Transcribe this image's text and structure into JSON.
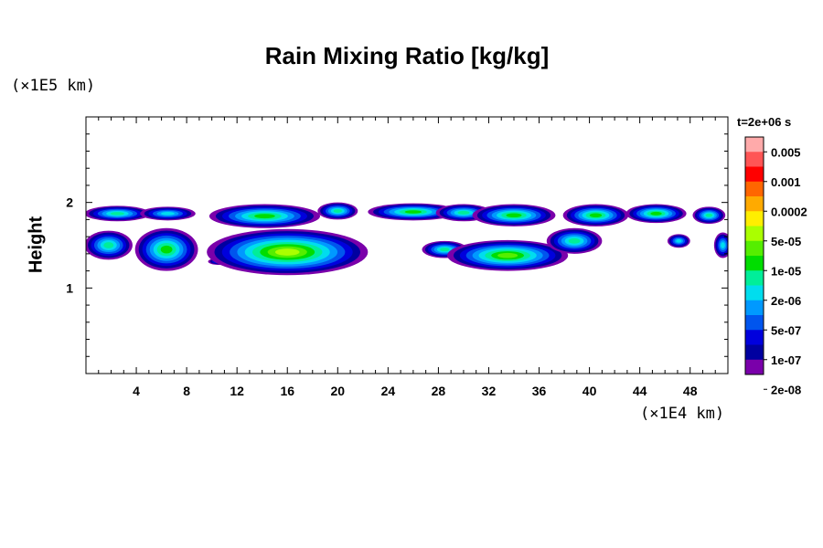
{
  "chart_data": {
    "type": "heatmap",
    "title": "Rain Mixing Ratio [kg/kg]",
    "ylabel": "Height",
    "y_unit_label": "(×1E5 km)",
    "x_unit_label": "(×1E4 km)",
    "time_label": "t=2e+06 s",
    "xlim": [
      0,
      51
    ],
    "ylim": [
      0,
      3
    ],
    "x_ticks": [
      4,
      8,
      12,
      16,
      20,
      24,
      28,
      32,
      36,
      40,
      44,
      48
    ],
    "y_ticks": [
      1,
      2
    ],
    "colorbar": {
      "labels": [
        "0.005",
        "0.001",
        "0.0002",
        "5e-05",
        "1e-05",
        "2e-06",
        "5e-07",
        "1e-07",
        "2e-08"
      ],
      "colors": [
        "#ffaaaa",
        "#ff5555",
        "#ff0000",
        "#ff6600",
        "#ffaa00",
        "#ffee00",
        "#aaff00",
        "#55ee00",
        "#00dd00",
        "#00ee99",
        "#00ddee",
        "#0099ff",
        "#0055ee",
        "#0000dd",
        "#0000a0",
        "#7a00aa"
      ]
    },
    "blobs": [
      {
        "x": 2.5,
        "y": 1.87,
        "rx": 2.6,
        "ry": 0.09,
        "level": 6
      },
      {
        "x": 6.5,
        "y": 1.87,
        "rx": 2.2,
        "ry": 0.08,
        "level": 5
      },
      {
        "x": 1.8,
        "y": 1.5,
        "rx": 1.9,
        "ry": 0.17,
        "level": 6
      },
      {
        "x": 6.4,
        "y": 1.45,
        "rx": 2.5,
        "ry": 0.25,
        "level": 7
      },
      {
        "x": 10.6,
        "y": 1.31,
        "rx": 0.9,
        "ry": 0.04,
        "level": 4
      },
      {
        "x": 14.2,
        "y": 1.84,
        "rx": 4.4,
        "ry": 0.14,
        "level": 7
      },
      {
        "x": 16.0,
        "y": 1.42,
        "rx": 6.4,
        "ry": 0.27,
        "level": 9
      },
      {
        "x": 20.0,
        "y": 1.9,
        "rx": 1.6,
        "ry": 0.1,
        "level": 6
      },
      {
        "x": 26.0,
        "y": 1.89,
        "rx": 3.6,
        "ry": 0.1,
        "level": 7
      },
      {
        "x": 30.0,
        "y": 1.88,
        "rx": 2.2,
        "ry": 0.1,
        "level": 6
      },
      {
        "x": 34.0,
        "y": 1.85,
        "rx": 3.3,
        "ry": 0.13,
        "level": 7
      },
      {
        "x": 28.5,
        "y": 1.45,
        "rx": 1.8,
        "ry": 0.1,
        "level": 6
      },
      {
        "x": 33.5,
        "y": 1.38,
        "rx": 4.8,
        "ry": 0.18,
        "level": 8
      },
      {
        "x": 38.8,
        "y": 1.55,
        "rx": 2.2,
        "ry": 0.15,
        "level": 6
      },
      {
        "x": 40.5,
        "y": 1.85,
        "rx": 2.6,
        "ry": 0.13,
        "level": 7
      },
      {
        "x": 45.3,
        "y": 1.87,
        "rx": 2.4,
        "ry": 0.11,
        "level": 7
      },
      {
        "x": 49.5,
        "y": 1.85,
        "rx": 1.3,
        "ry": 0.1,
        "level": 6
      },
      {
        "x": 47.1,
        "y": 1.55,
        "rx": 0.9,
        "ry": 0.08,
        "level": 5
      },
      {
        "x": 50.6,
        "y": 1.5,
        "rx": 0.7,
        "ry": 0.15,
        "level": 5
      }
    ]
  }
}
